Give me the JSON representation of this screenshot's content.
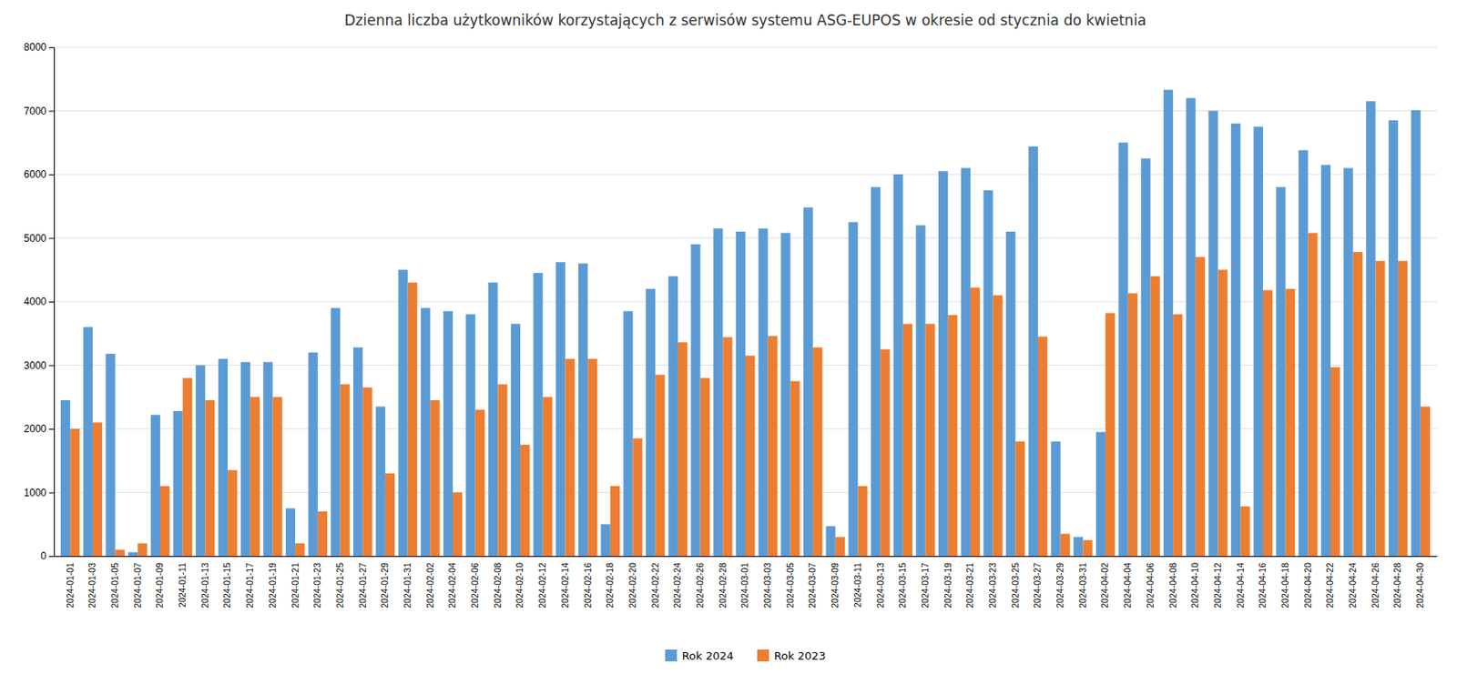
{
  "chart_data": {
    "type": "bar",
    "title": "Dzienna liczba użytkowników korzystających z serwisów systemu ASG-EUPOS w okresie od stycznia do kwietnia",
    "categories": [
      "2024-01-01",
      "2024-01-03",
      "2024-01-05",
      "2024-01-07",
      "2024-01-09",
      "2024-01-11",
      "2024-01-13",
      "2024-01-15",
      "2024-01-17",
      "2024-01-19",
      "2024-01-21",
      "2024-01-23",
      "2024-01-25",
      "2024-01-27",
      "2024-01-29",
      "2024-01-31",
      "2024-02-02",
      "2024-02-04",
      "2024-02-06",
      "2024-02-08",
      "2024-02-10",
      "2024-02-12",
      "2024-02-14",
      "2024-02-16",
      "2024-02-18",
      "2024-02-20",
      "2024-02-22",
      "2024-02-24",
      "2024-02-26",
      "2024-02-28",
      "2024-03-01",
      "2024-03-03",
      "2024-03-05",
      "2024-03-07",
      "2024-03-09",
      "2024-03-11",
      "2024-03-13",
      "2024-03-15",
      "2024-03-17",
      "2024-03-19",
      "2024-03-21",
      "2024-03-23",
      "2024-03-25",
      "2024-03-27",
      "2024-03-29",
      "2024-03-31",
      "2024-04-02",
      "2024-04-04",
      "2024-04-06",
      "2024-04-08",
      "2024-04-10",
      "2024-04-12",
      "2024-04-14",
      "2024-04-16",
      "2024-04-18",
      "2024-04-20",
      "2024-04-22",
      "2024-04-24",
      "2024-04-26",
      "2024-04-28",
      "2024-04-30"
    ],
    "series": [
      {
        "name": "Rok 2024",
        "color": "#5B9BD5",
        "values": [
          2450,
          3600,
          3180,
          60,
          2220,
          2280,
          3000,
          3100,
          3050,
          3050,
          750,
          3200,
          3900,
          3280,
          2350,
          4500,
          3900,
          3850,
          3800,
          4300,
          3650,
          4450,
          4620,
          4600,
          500,
          3850,
          4200,
          4400,
          4900,
          5150,
          5100,
          5150,
          5080,
          5480,
          470,
          5250,
          5800,
          6000,
          5200,
          6050,
          6100,
          5750,
          5100,
          6440,
          1800,
          300,
          1950,
          6500,
          6250,
          7330,
          7200,
          7000,
          6800,
          6750,
          5800,
          6380,
          6150,
          6100,
          7150,
          6850,
          7010
        ]
      },
      {
        "name": "Rok 2023",
        "color": "#ED7D31",
        "values": [
          2000,
          2100,
          100,
          200,
          1100,
          2800,
          2450,
          1350,
          2500,
          2500,
          200,
          700,
          2700,
          2650,
          1300,
          4300,
          2450,
          1000,
          2300,
          2700,
          1750,
          2500,
          3100,
          3100,
          1100,
          1850,
          2850,
          3360,
          2800,
          3440,
          3150,
          3460,
          2750,
          3280,
          300,
          1100,
          3250,
          3650,
          3650,
          3790,
          4220,
          4100,
          1800,
          3450,
          350,
          250,
          3820,
          4130,
          4400,
          3800,
          4700,
          4500,
          780,
          4180,
          4200,
          5080,
          2970,
          4780,
          4640,
          4640,
          2350
        ]
      }
    ],
    "ylim": [
      0,
      8000
    ],
    "yticks": [
      0,
      1000,
      2000,
      3000,
      4000,
      5000,
      6000,
      7000,
      8000
    ],
    "grid": true,
    "legend": "bottom"
  }
}
